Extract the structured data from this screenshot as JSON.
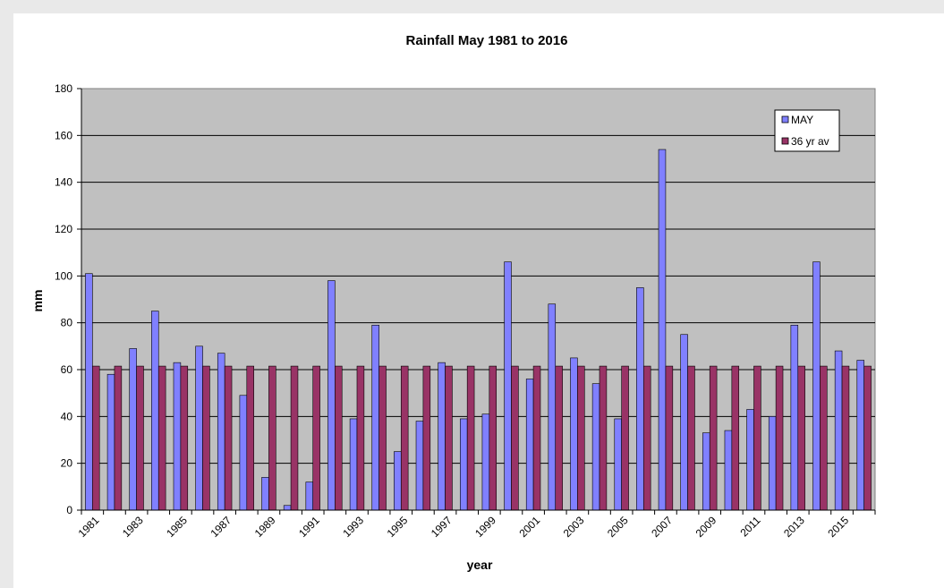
{
  "chart_data": {
    "type": "bar",
    "title": "Rainfall May 1981 to 2016",
    "xlabel": "year",
    "ylabel": "mm",
    "ylim": [
      0,
      180
    ],
    "ytick_step": 20,
    "grid": true,
    "legend_position": "top-right",
    "categories": [
      1981,
      1982,
      1983,
      1984,
      1985,
      1986,
      1987,
      1988,
      1989,
      1990,
      1991,
      1992,
      1993,
      1994,
      1995,
      1996,
      1997,
      1998,
      1999,
      2000,
      2001,
      2002,
      2003,
      2004,
      2005,
      2006,
      2007,
      2008,
      2009,
      2010,
      2011,
      2012,
      2013,
      2014,
      2015,
      2016
    ],
    "xtick_labels": [
      "1981",
      "",
      "1983",
      "",
      "1985",
      "",
      "1987",
      "",
      "1989",
      "",
      "1991",
      "",
      "1993",
      "",
      "1995",
      "",
      "1997",
      "",
      "1999",
      "",
      "2001",
      "",
      "2003",
      "",
      "2005",
      "",
      "2007",
      "",
      "2009",
      "",
      "2011",
      "",
      "2013",
      "",
      "2015",
      ""
    ],
    "series": [
      {
        "name": "MAY",
        "color": "#8080ff",
        "values": [
          101,
          58,
          69,
          85,
          63,
          70,
          67,
          49,
          14,
          2,
          12,
          98,
          39,
          79,
          25,
          38,
          63,
          39,
          41,
          106,
          56,
          88,
          65,
          54,
          39,
          95,
          154,
          75,
          33,
          34,
          43,
          40,
          79,
          106,
          68,
          64
        ]
      },
      {
        "name": "36 yr av",
        "color": "#993366",
        "values": [
          61.5,
          61.5,
          61.5,
          61.5,
          61.5,
          61.5,
          61.5,
          61.5,
          61.5,
          61.5,
          61.5,
          61.5,
          61.5,
          61.5,
          61.5,
          61.5,
          61.5,
          61.5,
          61.5,
          61.5,
          61.5,
          61.5,
          61.5,
          61.5,
          61.5,
          61.5,
          61.5,
          61.5,
          61.5,
          61.5,
          61.5,
          61.5,
          61.5,
          61.5,
          61.5,
          61.5
        ]
      }
    ]
  }
}
